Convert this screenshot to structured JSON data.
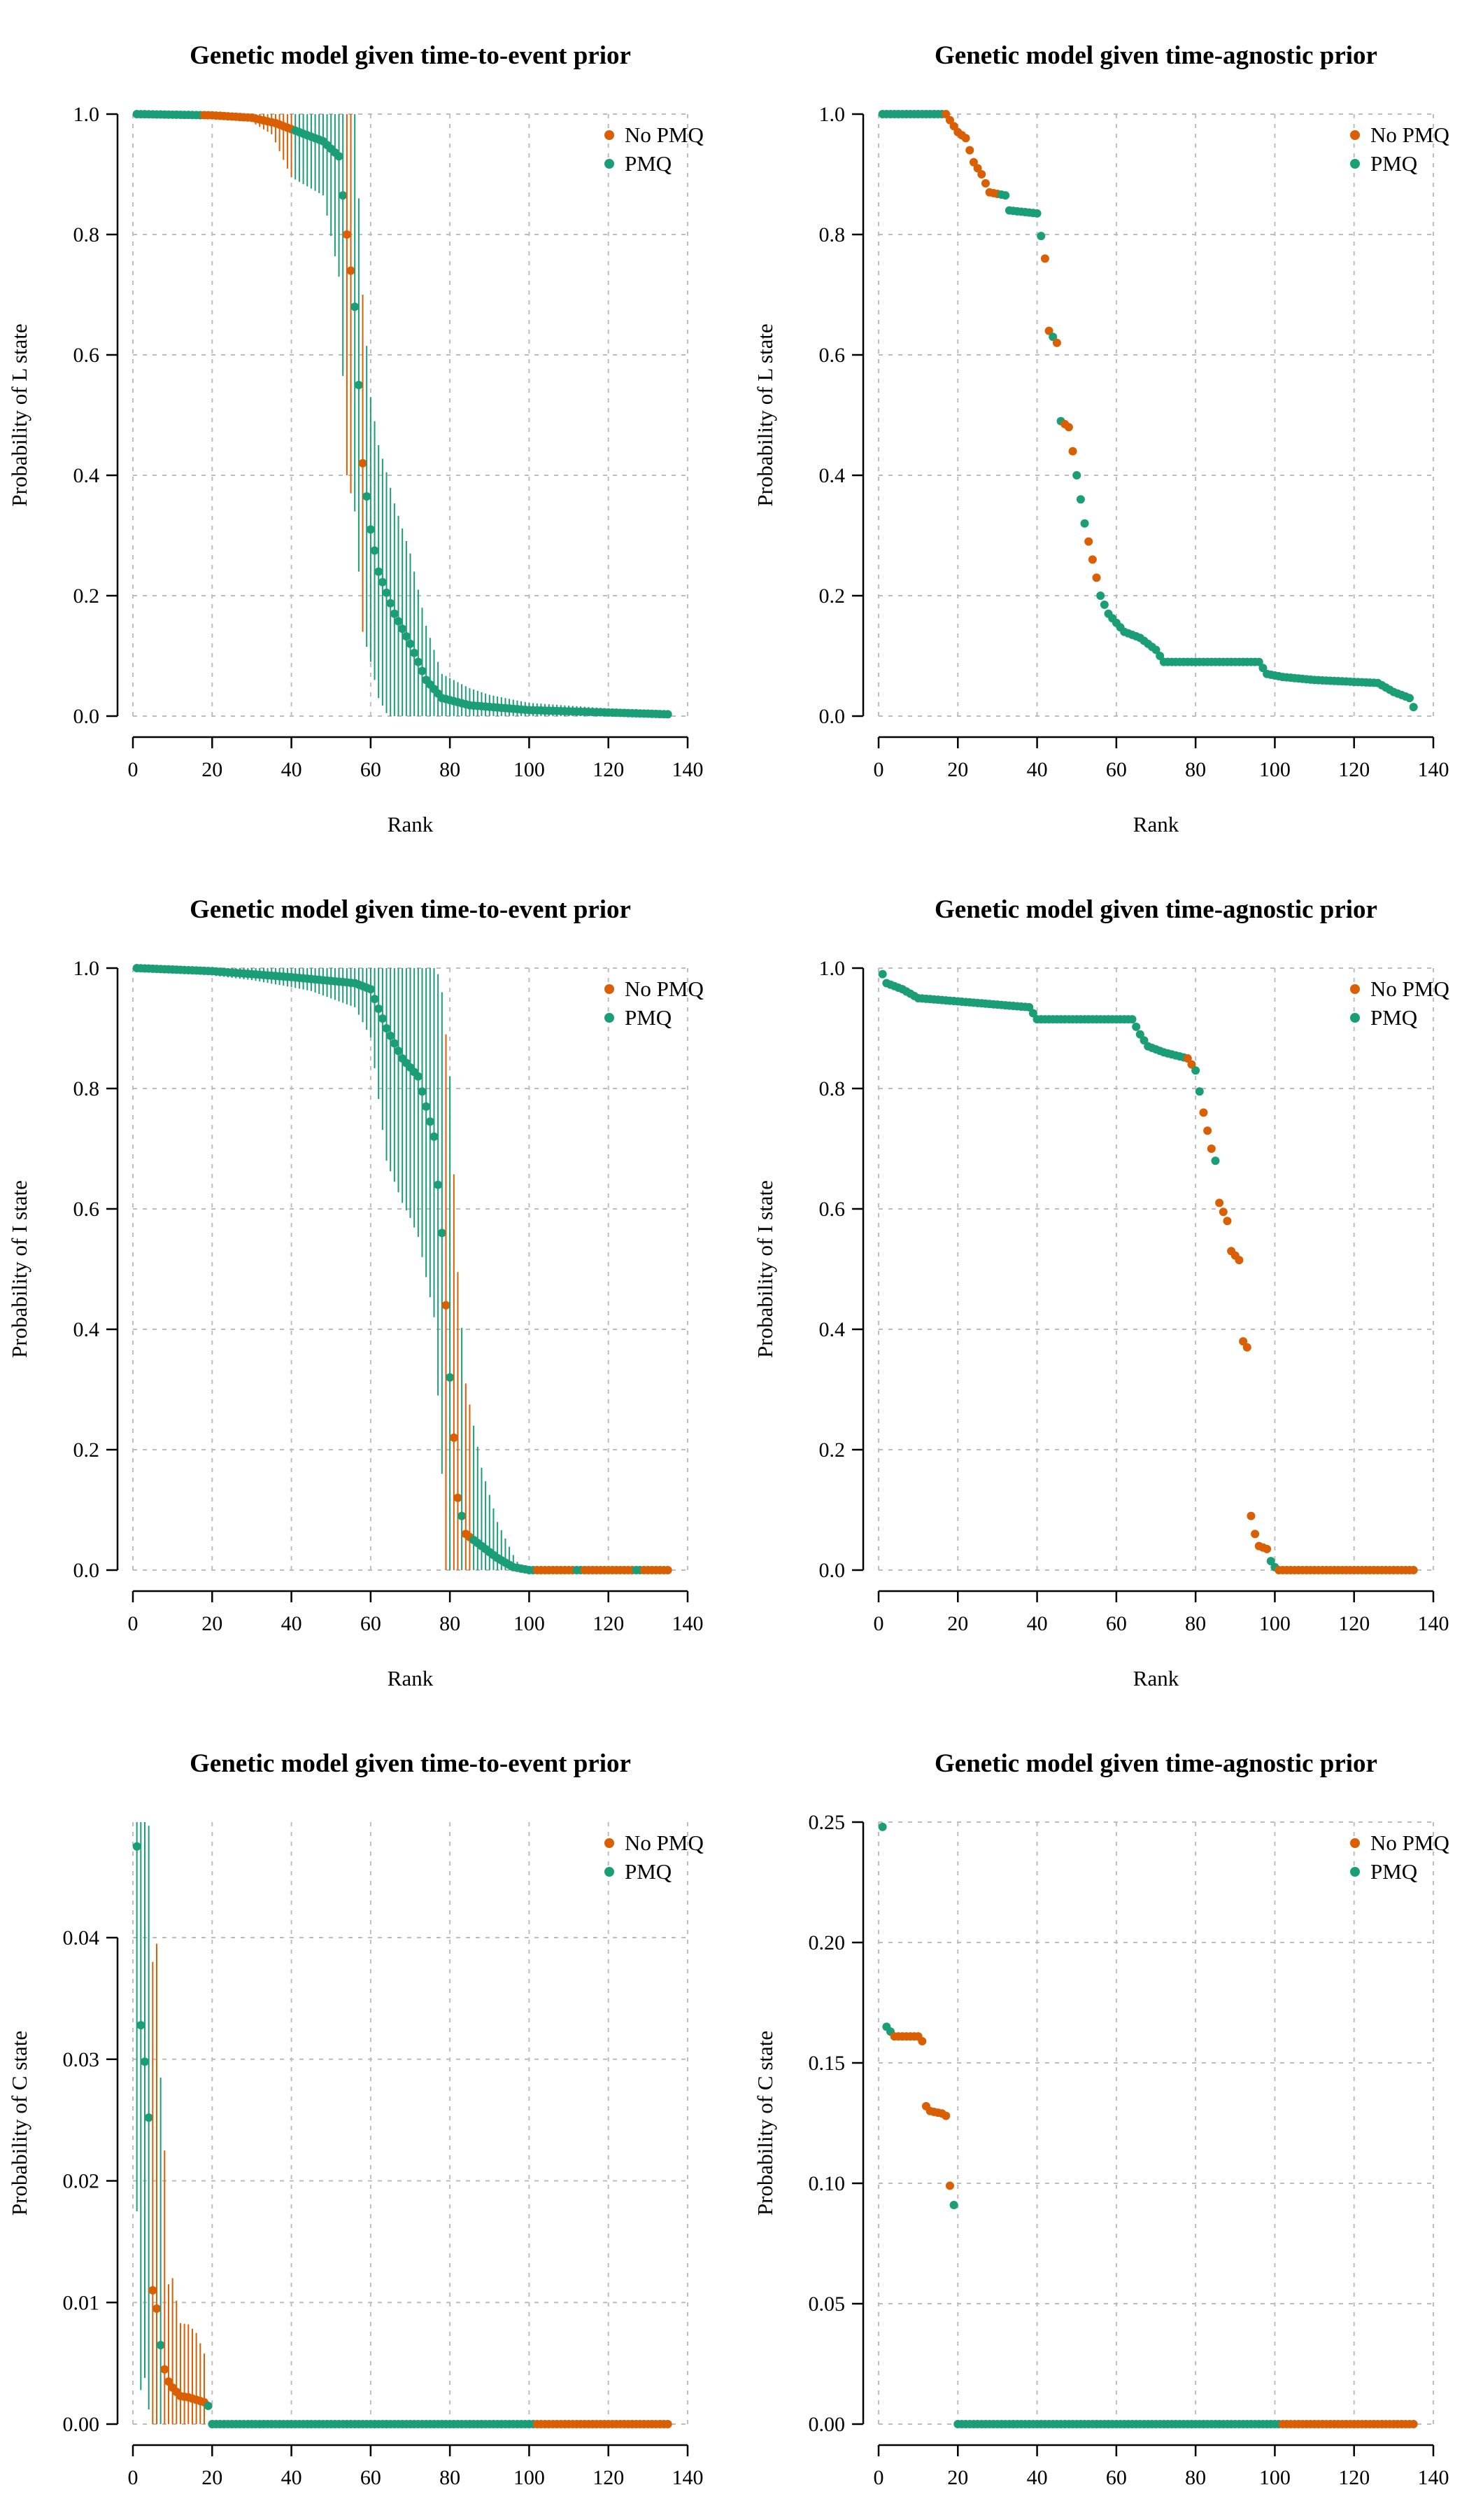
{
  "colors": {
    "no_pmq": "#d95f02",
    "pmq": "#1b9e77",
    "grid": "#bdbdbd",
    "axis": "#000000"
  },
  "chart_data": [
    {
      "id": "L-tte",
      "type": "scatter",
      "title": "Genetic model given time-to-event prior",
      "xlabel": "Rank",
      "ylabel": "Probability of L state",
      "xlim": [
        0,
        140
      ],
      "ylim": [
        0,
        1
      ],
      "xticks": [
        0,
        20,
        40,
        60,
        80,
        100,
        120,
        140
      ],
      "yticks": [
        "0.0",
        "0.2",
        "0.4",
        "0.6",
        "0.8",
        "1.0"
      ],
      "ytick_values": [
        0,
        0.2,
        0.4,
        0.6,
        0.8,
        1.0
      ],
      "grid": true,
      "legend_position": "top-right",
      "error_bars": true,
      "legend": [
        {
          "label": "No PMQ",
          "series": "no_pmq"
        },
        {
          "label": "PMQ",
          "series": "pmq"
        }
      ],
      "profile": [
        [
          1,
          1.0
        ],
        [
          20,
          0.998
        ],
        [
          30,
          0.994
        ],
        [
          36,
          0.985
        ],
        [
          42,
          0.97
        ],
        [
          48,
          0.955
        ],
        [
          52,
          0.93
        ],
        [
          54,
          0.8
        ],
        [
          56,
          0.68
        ],
        [
          58,
          0.42
        ],
        [
          60,
          0.31
        ],
        [
          62,
          0.24
        ],
        [
          66,
          0.17
        ],
        [
          70,
          0.12
        ],
        [
          74,
          0.06
        ],
        [
          78,
          0.03
        ],
        [
          85,
          0.018
        ],
        [
          100,
          0.01
        ],
        [
          135,
          0.003
        ]
      ],
      "errors": [
        [
          1,
          0
        ],
        [
          28,
          0.002
        ],
        [
          35,
          0.02
        ],
        [
          40,
          0.08
        ],
        [
          48,
          0.09
        ],
        [
          52,
          0.2
        ],
        [
          54,
          0.4
        ],
        [
          60,
          0.22
        ],
        [
          64,
          0.2
        ],
        [
          70,
          0.15
        ],
        [
          74,
          0.09
        ],
        [
          78,
          0.04
        ],
        [
          90,
          0.02
        ],
        [
          100,
          0.012
        ],
        [
          135,
          0.003
        ]
      ],
      "assign": [
        [
          0,
          17,
          "pmq"
        ],
        [
          18,
          40,
          "no_pmq"
        ],
        [
          41,
          53,
          "pmq"
        ],
        [
          54,
          55,
          "no_pmq"
        ],
        [
          56,
          57,
          "pmq"
        ],
        [
          58,
          58,
          "no_pmq"
        ],
        [
          59,
          135,
          "pmq"
        ]
      ]
    },
    {
      "id": "L-ta",
      "type": "scatter",
      "title": "Genetic model given time-agnostic prior",
      "xlabel": "Rank",
      "ylabel": "Probability of L state",
      "xlim": [
        0,
        140
      ],
      "ylim": [
        0,
        1
      ],
      "xticks": [
        0,
        20,
        40,
        60,
        80,
        100,
        120,
        140
      ],
      "yticks": [
        "0.0",
        "0.2",
        "0.4",
        "0.6",
        "0.8",
        "1.0"
      ],
      "ytick_values": [
        0,
        0.2,
        0.4,
        0.6,
        0.8,
        1.0
      ],
      "grid": true,
      "legend_position": "top-right",
      "error_bars": false,
      "legend": [
        {
          "label": "No PMQ",
          "series": "no_pmq"
        },
        {
          "label": "PMQ",
          "series": "pmq"
        }
      ],
      "profile": [
        [
          1,
          1.0
        ],
        [
          17,
          1.0
        ],
        [
          18,
          0.99
        ],
        [
          20,
          0.97
        ],
        [
          22,
          0.96
        ],
        [
          24,
          0.92
        ],
        [
          26,
          0.9
        ],
        [
          28,
          0.87
        ],
        [
          32,
          0.865
        ],
        [
          33,
          0.84
        ],
        [
          40,
          0.835
        ],
        [
          42,
          0.76
        ],
        [
          43,
          0.64
        ],
        [
          45,
          0.62
        ],
        [
          46,
          0.49
        ],
        [
          48,
          0.48
        ],
        [
          50,
          0.4
        ],
        [
          52,
          0.32
        ],
        [
          54,
          0.26
        ],
        [
          56,
          0.2
        ],
        [
          58,
          0.17
        ],
        [
          62,
          0.14
        ],
        [
          66,
          0.13
        ],
        [
          70,
          0.11
        ],
        [
          72,
          0.09
        ],
        [
          96,
          0.09
        ],
        [
          98,
          0.07
        ],
        [
          102,
          0.065
        ],
        [
          110,
          0.06
        ],
        [
          126,
          0.055
        ],
        [
          130,
          0.04
        ],
        [
          134,
          0.03
        ],
        [
          135,
          0.015
        ]
      ],
      "assign": [
        [
          0,
          16,
          "pmq"
        ],
        [
          17,
          30,
          "no_pmq"
        ],
        [
          31,
          41,
          "pmq"
        ],
        [
          42,
          43,
          "no_pmq"
        ],
        [
          44,
          44,
          "pmq"
        ],
        [
          45,
          45,
          "no_pmq"
        ],
        [
          46,
          46,
          "pmq"
        ],
        [
          47,
          49,
          "no_pmq"
        ],
        [
          50,
          52,
          "pmq"
        ],
        [
          53,
          55,
          "no_pmq"
        ],
        [
          56,
          135,
          "pmq"
        ]
      ]
    },
    {
      "id": "I-tte",
      "type": "scatter",
      "title": "Genetic model given time-to-event prior",
      "xlabel": "Rank",
      "ylabel": "Probability of I state",
      "xlim": [
        0,
        140
      ],
      "ylim": [
        0,
        1
      ],
      "xticks": [
        0,
        20,
        40,
        60,
        80,
        100,
        120,
        140
      ],
      "yticks": [
        "0.0",
        "0.2",
        "0.4",
        "0.6",
        "0.8",
        "1.0"
      ],
      "ytick_values": [
        0,
        0.2,
        0.4,
        0.6,
        0.8,
        1.0
      ],
      "grid": true,
      "legend_position": "top-right",
      "error_bars": true,
      "legend": [
        {
          "label": "No PMQ",
          "series": "no_pmq"
        },
        {
          "label": "PMQ",
          "series": "pmq"
        }
      ],
      "profile": [
        [
          1,
          1.0
        ],
        [
          20,
          0.995
        ],
        [
          40,
          0.985
        ],
        [
          56,
          0.975
        ],
        [
          60,
          0.965
        ],
        [
          64,
          0.9
        ],
        [
          68,
          0.85
        ],
        [
          72,
          0.82
        ],
        [
          76,
          0.72
        ],
        [
          78,
          0.56
        ],
        [
          80,
          0.32
        ],
        [
          82,
          0.12
        ],
        [
          84,
          0.06
        ],
        [
          88,
          0.04
        ],
        [
          92,
          0.02
        ],
        [
          96,
          0.005
        ],
        [
          100,
          0.0
        ],
        [
          135,
          0.0
        ]
      ],
      "errors": [
        [
          1,
          0.002
        ],
        [
          30,
          0.01
        ],
        [
          45,
          0.02
        ],
        [
          56,
          0.04
        ],
        [
          60,
          0.08
        ],
        [
          64,
          0.22
        ],
        [
          70,
          0.25
        ],
        [
          76,
          0.3
        ],
        [
          80,
          0.5
        ],
        [
          84,
          0.25
        ],
        [
          88,
          0.13
        ],
        [
          92,
          0.06
        ],
        [
          97,
          0.01
        ],
        [
          100,
          0.0
        ],
        [
          135,
          0.0
        ]
      ],
      "assign": [
        [
          0,
          78,
          "pmq"
        ],
        [
          79,
          79,
          "no_pmq"
        ],
        [
          80,
          80,
          "pmq"
        ],
        [
          81,
          82,
          "no_pmq"
        ],
        [
          83,
          83,
          "pmq"
        ],
        [
          84,
          85,
          "no_pmq"
        ],
        [
          86,
          101,
          "pmq"
        ],
        [
          102,
          111,
          "no_pmq"
        ],
        [
          112,
          113,
          "pmq"
        ],
        [
          114,
          126,
          "no_pmq"
        ],
        [
          127,
          128,
          "pmq"
        ],
        [
          129,
          135,
          "no_pmq"
        ]
      ]
    },
    {
      "id": "I-ta",
      "type": "scatter",
      "title": "Genetic model given time-agnostic prior",
      "xlabel": "Rank",
      "ylabel": "Probability of I state",
      "xlim": [
        0,
        140
      ],
      "ylim": [
        0,
        1
      ],
      "xticks": [
        0,
        20,
        40,
        60,
        80,
        100,
        120,
        140
      ],
      "yticks": [
        "0.0",
        "0.2",
        "0.4",
        "0.6",
        "0.8",
        "1.0"
      ],
      "ytick_values": [
        0,
        0.2,
        0.4,
        0.6,
        0.8,
        1.0
      ],
      "grid": true,
      "legend_position": "top-right",
      "error_bars": false,
      "legend": [
        {
          "label": "No PMQ",
          "series": "no_pmq"
        },
        {
          "label": "PMQ",
          "series": "pmq"
        }
      ],
      "profile": [
        [
          1,
          0.99
        ],
        [
          2,
          0.975
        ],
        [
          6,
          0.965
        ],
        [
          10,
          0.95
        ],
        [
          14,
          0.948
        ],
        [
          38,
          0.935
        ],
        [
          40,
          0.915
        ],
        [
          64,
          0.915
        ],
        [
          66,
          0.89
        ],
        [
          68,
          0.87
        ],
        [
          72,
          0.86
        ],
        [
          78,
          0.85
        ],
        [
          80,
          0.83
        ],
        [
          82,
          0.76
        ],
        [
          84,
          0.7
        ],
        [
          85,
          0.68
        ],
        [
          86,
          0.61
        ],
        [
          88,
          0.58
        ],
        [
          89,
          0.53
        ],
        [
          91,
          0.515
        ],
        [
          92,
          0.38
        ],
        [
          93,
          0.37
        ],
        [
          94,
          0.09
        ],
        [
          95,
          0.06
        ],
        [
          96,
          0.04
        ],
        [
          98,
          0.035
        ],
        [
          99,
          0.015
        ],
        [
          100,
          0.005
        ],
        [
          101,
          0.0
        ],
        [
          135,
          0.0
        ]
      ],
      "assign": [
        [
          0,
          77,
          "pmq"
        ],
        [
          78,
          79,
          "no_pmq"
        ],
        [
          80,
          81,
          "pmq"
        ],
        [
          82,
          84,
          "no_pmq"
        ],
        [
          85,
          85,
          "pmq"
        ],
        [
          86,
          98,
          "no_pmq"
        ],
        [
          99,
          100,
          "pmq"
        ],
        [
          101,
          135,
          "no_pmq"
        ]
      ]
    },
    {
      "id": "C-tte",
      "type": "scatter",
      "title": "Genetic model given time-to-event prior",
      "xlabel": "Rank",
      "ylabel": "Probability of C state",
      "xlim": [
        0,
        140
      ],
      "ylim": [
        0,
        0.0495
      ],
      "xticks": [
        0,
        20,
        40,
        60,
        80,
        100,
        120,
        140
      ],
      "yticks": [
        "0.00",
        "0.01",
        "0.02",
        "0.03",
        "0.04"
      ],
      "ytick_values": [
        0,
        0.01,
        0.02,
        0.03,
        0.04
      ],
      "grid": true,
      "legend_position": "top-right",
      "error_bars": true,
      "legend": [
        {
          "label": "No PMQ",
          "series": "no_pmq"
        },
        {
          "label": "PMQ",
          "series": "pmq"
        }
      ],
      "profile": [
        [
          1,
          0.0475
        ],
        [
          2,
          0.0328
        ],
        [
          3,
          0.0298
        ],
        [
          4,
          0.0252
        ],
        [
          5,
          0.011
        ],
        [
          6,
          0.0095
        ],
        [
          7,
          0.0065
        ],
        [
          8,
          0.0045
        ],
        [
          9,
          0.0035
        ],
        [
          10,
          0.003
        ],
        [
          12,
          0.0023
        ],
        [
          14,
          0.0022
        ],
        [
          16,
          0.002
        ],
        [
          18,
          0.0018
        ],
        [
          19,
          0.0015
        ],
        [
          20,
          0.0
        ],
        [
          135,
          0.0
        ]
      ],
      "errors": [
        [
          1,
          0.03
        ],
        [
          2,
          0.03
        ],
        [
          3,
          0.026
        ],
        [
          4,
          0.024
        ],
        [
          5,
          0.027
        ],
        [
          6,
          0.03
        ],
        [
          7,
          0.022
        ],
        [
          8,
          0.018
        ],
        [
          9,
          0.008
        ],
        [
          10,
          0.009
        ],
        [
          12,
          0.006
        ],
        [
          14,
          0.006
        ],
        [
          16,
          0.0055
        ],
        [
          18,
          0.004
        ],
        [
          19,
          0.0
        ],
        [
          135,
          0.0
        ]
      ],
      "assign": [
        [
          0,
          4,
          "pmq"
        ],
        [
          5,
          6,
          "no_pmq"
        ],
        [
          7,
          7,
          "pmq"
        ],
        [
          8,
          18,
          "no_pmq"
        ],
        [
          19,
          101,
          "pmq"
        ],
        [
          102,
          135,
          "no_pmq"
        ]
      ]
    },
    {
      "id": "C-ta",
      "type": "scatter",
      "title": "Genetic model given time-agnostic prior",
      "xlabel": "Rank",
      "ylabel": "Probability of C state",
      "xlim": [
        0,
        140
      ],
      "ylim": [
        0,
        0.25
      ],
      "xticks": [
        0,
        20,
        40,
        60,
        80,
        100,
        120,
        140
      ],
      "yticks": [
        "0.00",
        "0.05",
        "0.10",
        "0.15",
        "0.20",
        "0.25"
      ],
      "ytick_values": [
        0,
        0.05,
        0.1,
        0.15,
        0.2,
        0.25
      ],
      "grid": true,
      "legend_position": "top-right",
      "error_bars": false,
      "legend": [
        {
          "label": "No PMQ",
          "series": "no_pmq"
        },
        {
          "label": "PMQ",
          "series": "pmq"
        }
      ],
      "profile": [
        [
          1,
          0.248
        ],
        [
          2,
          0.165
        ],
        [
          3,
          0.163
        ],
        [
          4,
          0.161
        ],
        [
          10,
          0.161
        ],
        [
          11,
          0.159
        ],
        [
          12,
          0.132
        ],
        [
          13,
          0.13
        ],
        [
          16,
          0.129
        ],
        [
          17,
          0.128
        ],
        [
          18,
          0.099
        ],
        [
          19,
          0.091
        ],
        [
          20,
          0.0
        ],
        [
          135,
          0.0
        ]
      ],
      "assign": [
        [
          0,
          3,
          "pmq"
        ],
        [
          4,
          18,
          "no_pmq"
        ],
        [
          19,
          101,
          "pmq"
        ],
        [
          102,
          135,
          "no_pmq"
        ]
      ]
    }
  ]
}
